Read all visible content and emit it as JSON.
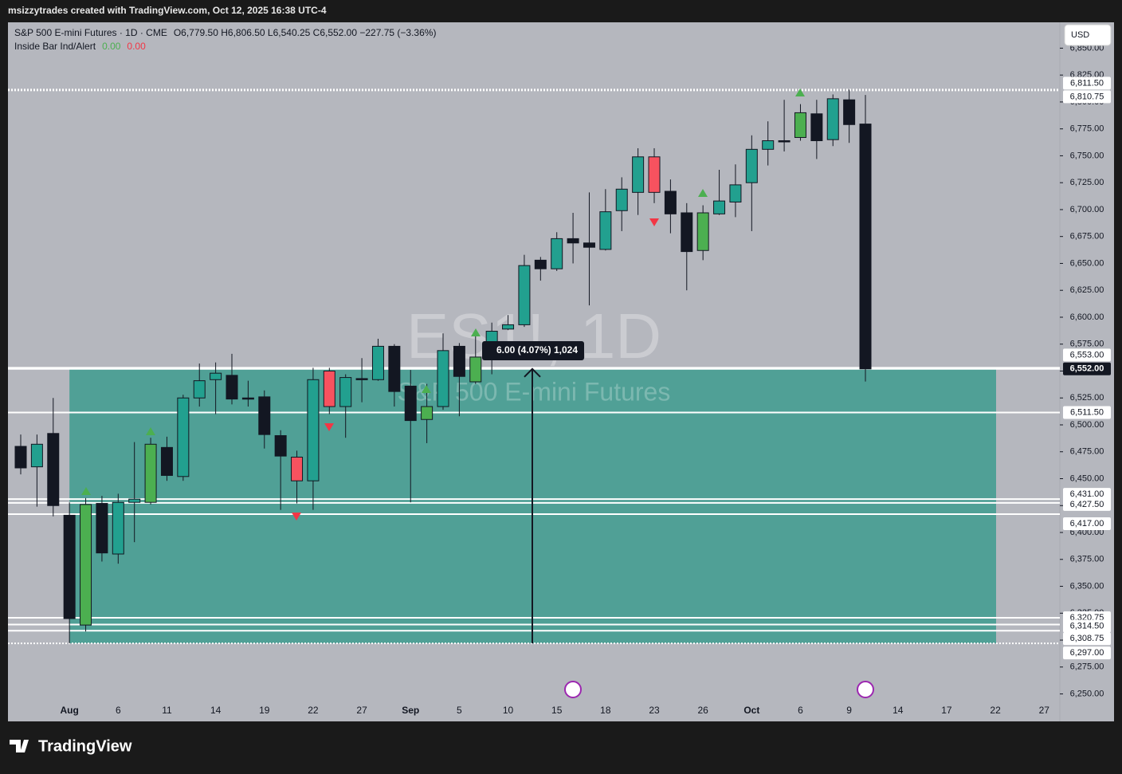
{
  "header": "msizzytrades created with TradingView.com, Oct 12, 2025 16:38 UTC-4",
  "legend": {
    "symbol": "S&P 500 E-mini Futures · 1D · CME",
    "ohlc": "O6,779.50  H6,806.50  L6,540.25  C6,552.00  −227.75 (−3.36%)",
    "indicator": "Inside Bar Ind/Alert",
    "indicator_v1": "0.00",
    "indicator_v2": "0.00"
  },
  "currency": "USD",
  "watermark": {
    "symbol": "ES1!, 1D",
    "name": "S&P 500 E-mini Futures"
  },
  "measure_label": "6.00 (4.07%) 1,024",
  "footer": "TradingView",
  "chart_data": {
    "type": "candlestick",
    "categories": [
      null,
      null,
      null,
      "Aug",
      null,
      null,
      "6",
      null,
      null,
      "11",
      null,
      null,
      "14",
      null,
      null,
      "19",
      null,
      null,
      "22",
      null,
      null,
      "27",
      null,
      null,
      "Sep",
      null,
      null,
      "5",
      null,
      null,
      "10",
      null,
      null,
      "15",
      null,
      null,
      "18",
      null,
      null,
      "23",
      null,
      null,
      "26",
      null,
      null,
      "Oct",
      null,
      null,
      "6",
      null,
      null,
      "9",
      null,
      null,
      "14",
      null,
      null,
      "17",
      null,
      null,
      "22",
      null,
      null,
      "27"
    ],
    "open": [
      6480,
      6461,
      6492,
      6416,
      6314,
      6427,
      6380,
      6428,
      6428,
      6479,
      6452,
      6525,
      6542,
      6546,
      6525,
      6526,
      6490,
      6470,
      6448,
      6550,
      6517,
      6543,
      6542,
      6573,
      6536,
      6505,
      6517,
      6573,
      6540,
      6565,
      6589,
      6593,
      6653,
      6645,
      6673,
      6669,
      6663,
      6699,
      6716,
      6749,
      6717,
      6697,
      6662,
      6696,
      6707,
      6725,
      6756,
      6764,
      6767,
      6789,
      6765,
      6802,
      6779.5,
      null,
      null,
      null,
      null,
      null,
      null,
      null,
      null,
      null,
      null,
      null
    ],
    "high": [
      6491,
      6491,
      6525,
      6428,
      6432,
      6434,
      6436,
      6484,
      6488,
      6489,
      6528,
      6557,
      6558,
      6566,
      6541,
      6532,
      6495,
      6476,
      6553,
      6553,
      6547,
      6562,
      6580,
      6575,
      6551,
      6538,
      6585,
      6576,
      6585,
      6595,
      6602,
      6658,
      6656,
      6679,
      6697,
      6716,
      6719,
      6730,
      6757,
      6757,
      6728,
      6706,
      6704,
      6737,
      6742,
      6769,
      6782,
      6802,
      6798,
      6802,
      6807,
      6811.5,
      6806.5,
      null,
      null,
      null,
      null,
      null,
      null,
      null,
      null,
      null,
      null,
      null
    ],
    "low": [
      6454,
      6424,
      6415,
      6297,
      6308,
      6373,
      6371,
      6391,
      6426,
      6448,
      6448,
      6517,
      6510,
      6519,
      6517,
      6478,
      6421,
      6427,
      6421,
      6510,
      6488,
      6521,
      6541,
      6517,
      6428,
      6483,
      6514,
      6508,
      6538,
      6547,
      6588,
      6591,
      6634,
      6643,
      6650,
      6611,
      6662,
      6680,
      6695,
      6706,
      6678,
      6625,
      6653,
      6695,
      6693,
      6680,
      6741,
      6754,
      6764,
      6747,
      6759,
      6762,
      6540.25,
      null,
      null,
      null,
      null,
      null,
      null,
      null,
      null,
      null,
      null,
      null
    ],
    "close": [
      6460,
      6482,
      6425,
      6320,
      6426,
      6381,
      6428,
      6431,
      6482,
      6453,
      6525,
      6541,
      6548,
      6524,
      6524,
      6491,
      6471,
      6448,
      6542,
      6517,
      6544,
      6542,
      6573,
      6531,
      6504,
      6517,
      6569,
      6545,
      6563,
      6587,
      6593,
      6648,
      6645,
      6673,
      6669,
      6665,
      6698,
      6719,
      6749,
      6716,
      6696,
      6661,
      6697,
      6708,
      6723,
      6756,
      6764,
      6763,
      6790,
      6764,
      6803,
      6779,
      6552,
      null,
      null,
      null,
      null,
      null,
      null,
      null,
      null,
      null,
      null,
      null
    ],
    "colors": [
      "#131722",
      "#22a08f",
      "#131722",
      "#131722",
      "#4caf50",
      "#131722",
      "#22a08f",
      "#22a08f",
      "#4caf50",
      "#131722",
      "#22a08f",
      "#22a08f",
      "#22a08f",
      "#131722",
      "#131722",
      "#131722",
      "#131722",
      "#f7525f",
      "#22a08f",
      "#f7525f",
      "#22a08f",
      "#131722",
      "#22a08f",
      "#131722",
      "#131722",
      "#4caf50",
      "#22a08f",
      "#131722",
      "#4caf50",
      "#22a08f",
      "#22a08f",
      "#22a08f",
      "#131722",
      "#22a08f",
      "#131722",
      "#131722",
      "#22a08f",
      "#22a08f",
      "#22a08f",
      "#f7525f",
      "#131722",
      "#131722",
      "#4caf50",
      "#22a08f",
      "#22a08f",
      "#22a08f",
      "#22a08f",
      "#131722",
      "#4caf50",
      "#131722",
      "#22a08f",
      "#131722",
      "#131722",
      null,
      null,
      null,
      null,
      null,
      null,
      null,
      null,
      null,
      null,
      null
    ],
    "ylim": [
      6243,
      6874
    ],
    "yticks": [
      {
        "value": 6250,
        "label": "6,250.00"
      },
      {
        "value": 6275,
        "label": "6,275.00"
      },
      {
        "value": 6300,
        "label": "6,300.00"
      },
      {
        "value": 6325,
        "label": "6,325.00"
      },
      {
        "value": 6350,
        "label": "6,350.00"
      },
      {
        "value": 6375,
        "label": "6,375.00"
      },
      {
        "value": 6400,
        "label": "6,400.00"
      },
      {
        "value": 6425,
        "label": "6,425.00"
      },
      {
        "value": 6450,
        "label": "6,450.00"
      },
      {
        "value": 6475,
        "label": "6,475.00"
      },
      {
        "value": 6500,
        "label": "6,500.00"
      },
      {
        "value": 6525,
        "label": "6,525.00"
      },
      {
        "value": 6550,
        "label": "6,550.00"
      },
      {
        "value": 6575,
        "label": "6,575.00"
      },
      {
        "value": 6600,
        "label": "6,600.00"
      },
      {
        "value": 6625,
        "label": "6,625.00"
      },
      {
        "value": 6650,
        "label": "6,650.00"
      },
      {
        "value": 6675,
        "label": "6,675.00"
      },
      {
        "value": 6700,
        "label": "6,700.00"
      },
      {
        "value": 6725,
        "label": "6,725.00"
      },
      {
        "value": 6750,
        "label": "6,750.00"
      },
      {
        "value": 6775,
        "label": "6,775.00"
      },
      {
        "value": 6800,
        "label": "6,800.00"
      },
      {
        "value": 6825,
        "label": "6,825.00"
      },
      {
        "value": 6850,
        "label": "6,850.00"
      }
    ],
    "levels": [
      {
        "value": 6811.5,
        "label": "6,811.50"
      },
      {
        "value": 6810.75,
        "label": "6,810.75"
      },
      {
        "value": 6553,
        "label": "6,553.00"
      },
      {
        "value": 6511.5,
        "label": "6,511.50"
      },
      {
        "value": 6431,
        "label": "6,431.00"
      },
      {
        "value": 6427.5,
        "label": "6,427.50"
      },
      {
        "value": 6417,
        "label": "6,417.00"
      },
      {
        "value": 6320.75,
        "label": "6,320.75"
      },
      {
        "value": 6314.5,
        "label": "6,314.50"
      },
      {
        "value": 6308.75,
        "label": "6,308.75"
      },
      {
        "value": 6297,
        "label": "6,297.00"
      }
    ],
    "last_price": {
      "value": 6552,
      "label": "6,552.00"
    }
  }
}
